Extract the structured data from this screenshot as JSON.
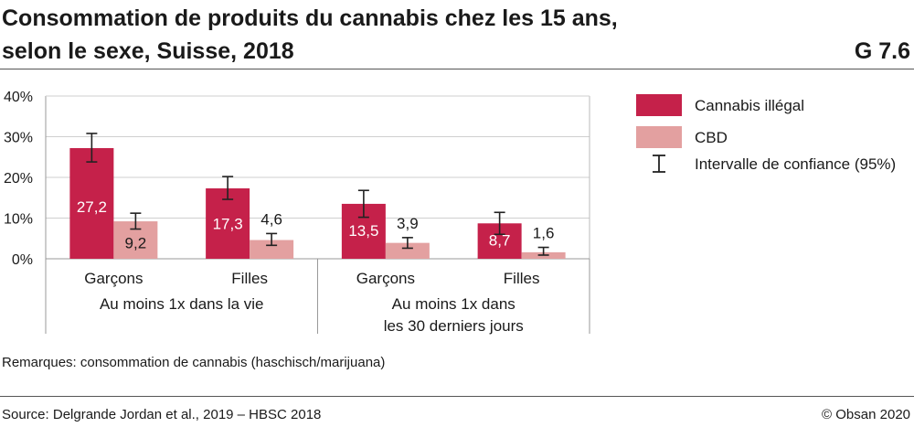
{
  "header": {
    "title_line1": "Consommation de produits du cannabis chez les 15 ans,",
    "title_line2": "selon le sexe, Suisse, 2018",
    "figure_code": "G 7.6"
  },
  "footer": {
    "note": "Remarques: consommation de cannabis (haschisch/marijuana)",
    "source": "Source: Delgrande Jordan et al., 2019 – HBSC 2018",
    "copyright": "© Obsan 2020"
  },
  "chart_data": {
    "type": "bar",
    "title": "Consommation de produits du cannabis chez les 15 ans, selon le sexe, Suisse, 2018",
    "ylim": [
      0,
      40
    ],
    "yticks": [
      0,
      10,
      20,
      30,
      40
    ],
    "ytick_labels": [
      "0%",
      "10%",
      "20%",
      "30%",
      "40%"
    ],
    "grid": true,
    "categories": [
      "Garçons",
      "Filles",
      "Garçons",
      "Filles"
    ],
    "groups": [
      {
        "label_lines": [
          "Au moins 1x dans la vie"
        ],
        "categories": [
          0,
          1
        ]
      },
      {
        "label_lines": [
          "Au moins 1x dans",
          "les 30 derniers jours"
        ],
        "categories": [
          2,
          3
        ]
      }
    ],
    "series": [
      {
        "name": "Cannabis illégal",
        "color": "#c5214a",
        "label_color": "#ffffff",
        "values": [
          27.2,
          17.3,
          13.5,
          8.7
        ],
        "labels": [
          "27,2",
          "17,3",
          "13,5",
          "8,7"
        ],
        "ci": [
          [
            23.8,
            30.8
          ],
          [
            14.6,
            20.2
          ],
          [
            10.2,
            16.8
          ],
          [
            6.0,
            11.4
          ]
        ]
      },
      {
        "name": "CBD",
        "color": "#e3a0a0",
        "label_color": "#1a1a1a",
        "values": [
          9.2,
          4.6,
          3.9,
          1.6
        ],
        "labels": [
          "9,2",
          "4,6",
          "3,9",
          "1,6"
        ],
        "ci": [
          [
            7.3,
            11.2
          ],
          [
            3.3,
            6.2
          ],
          [
            2.6,
            5.2
          ],
          [
            0.9,
            2.8
          ]
        ]
      }
    ],
    "legend": {
      "position": "right",
      "ci_label": "Intervalle de confiance (95%)"
    }
  }
}
